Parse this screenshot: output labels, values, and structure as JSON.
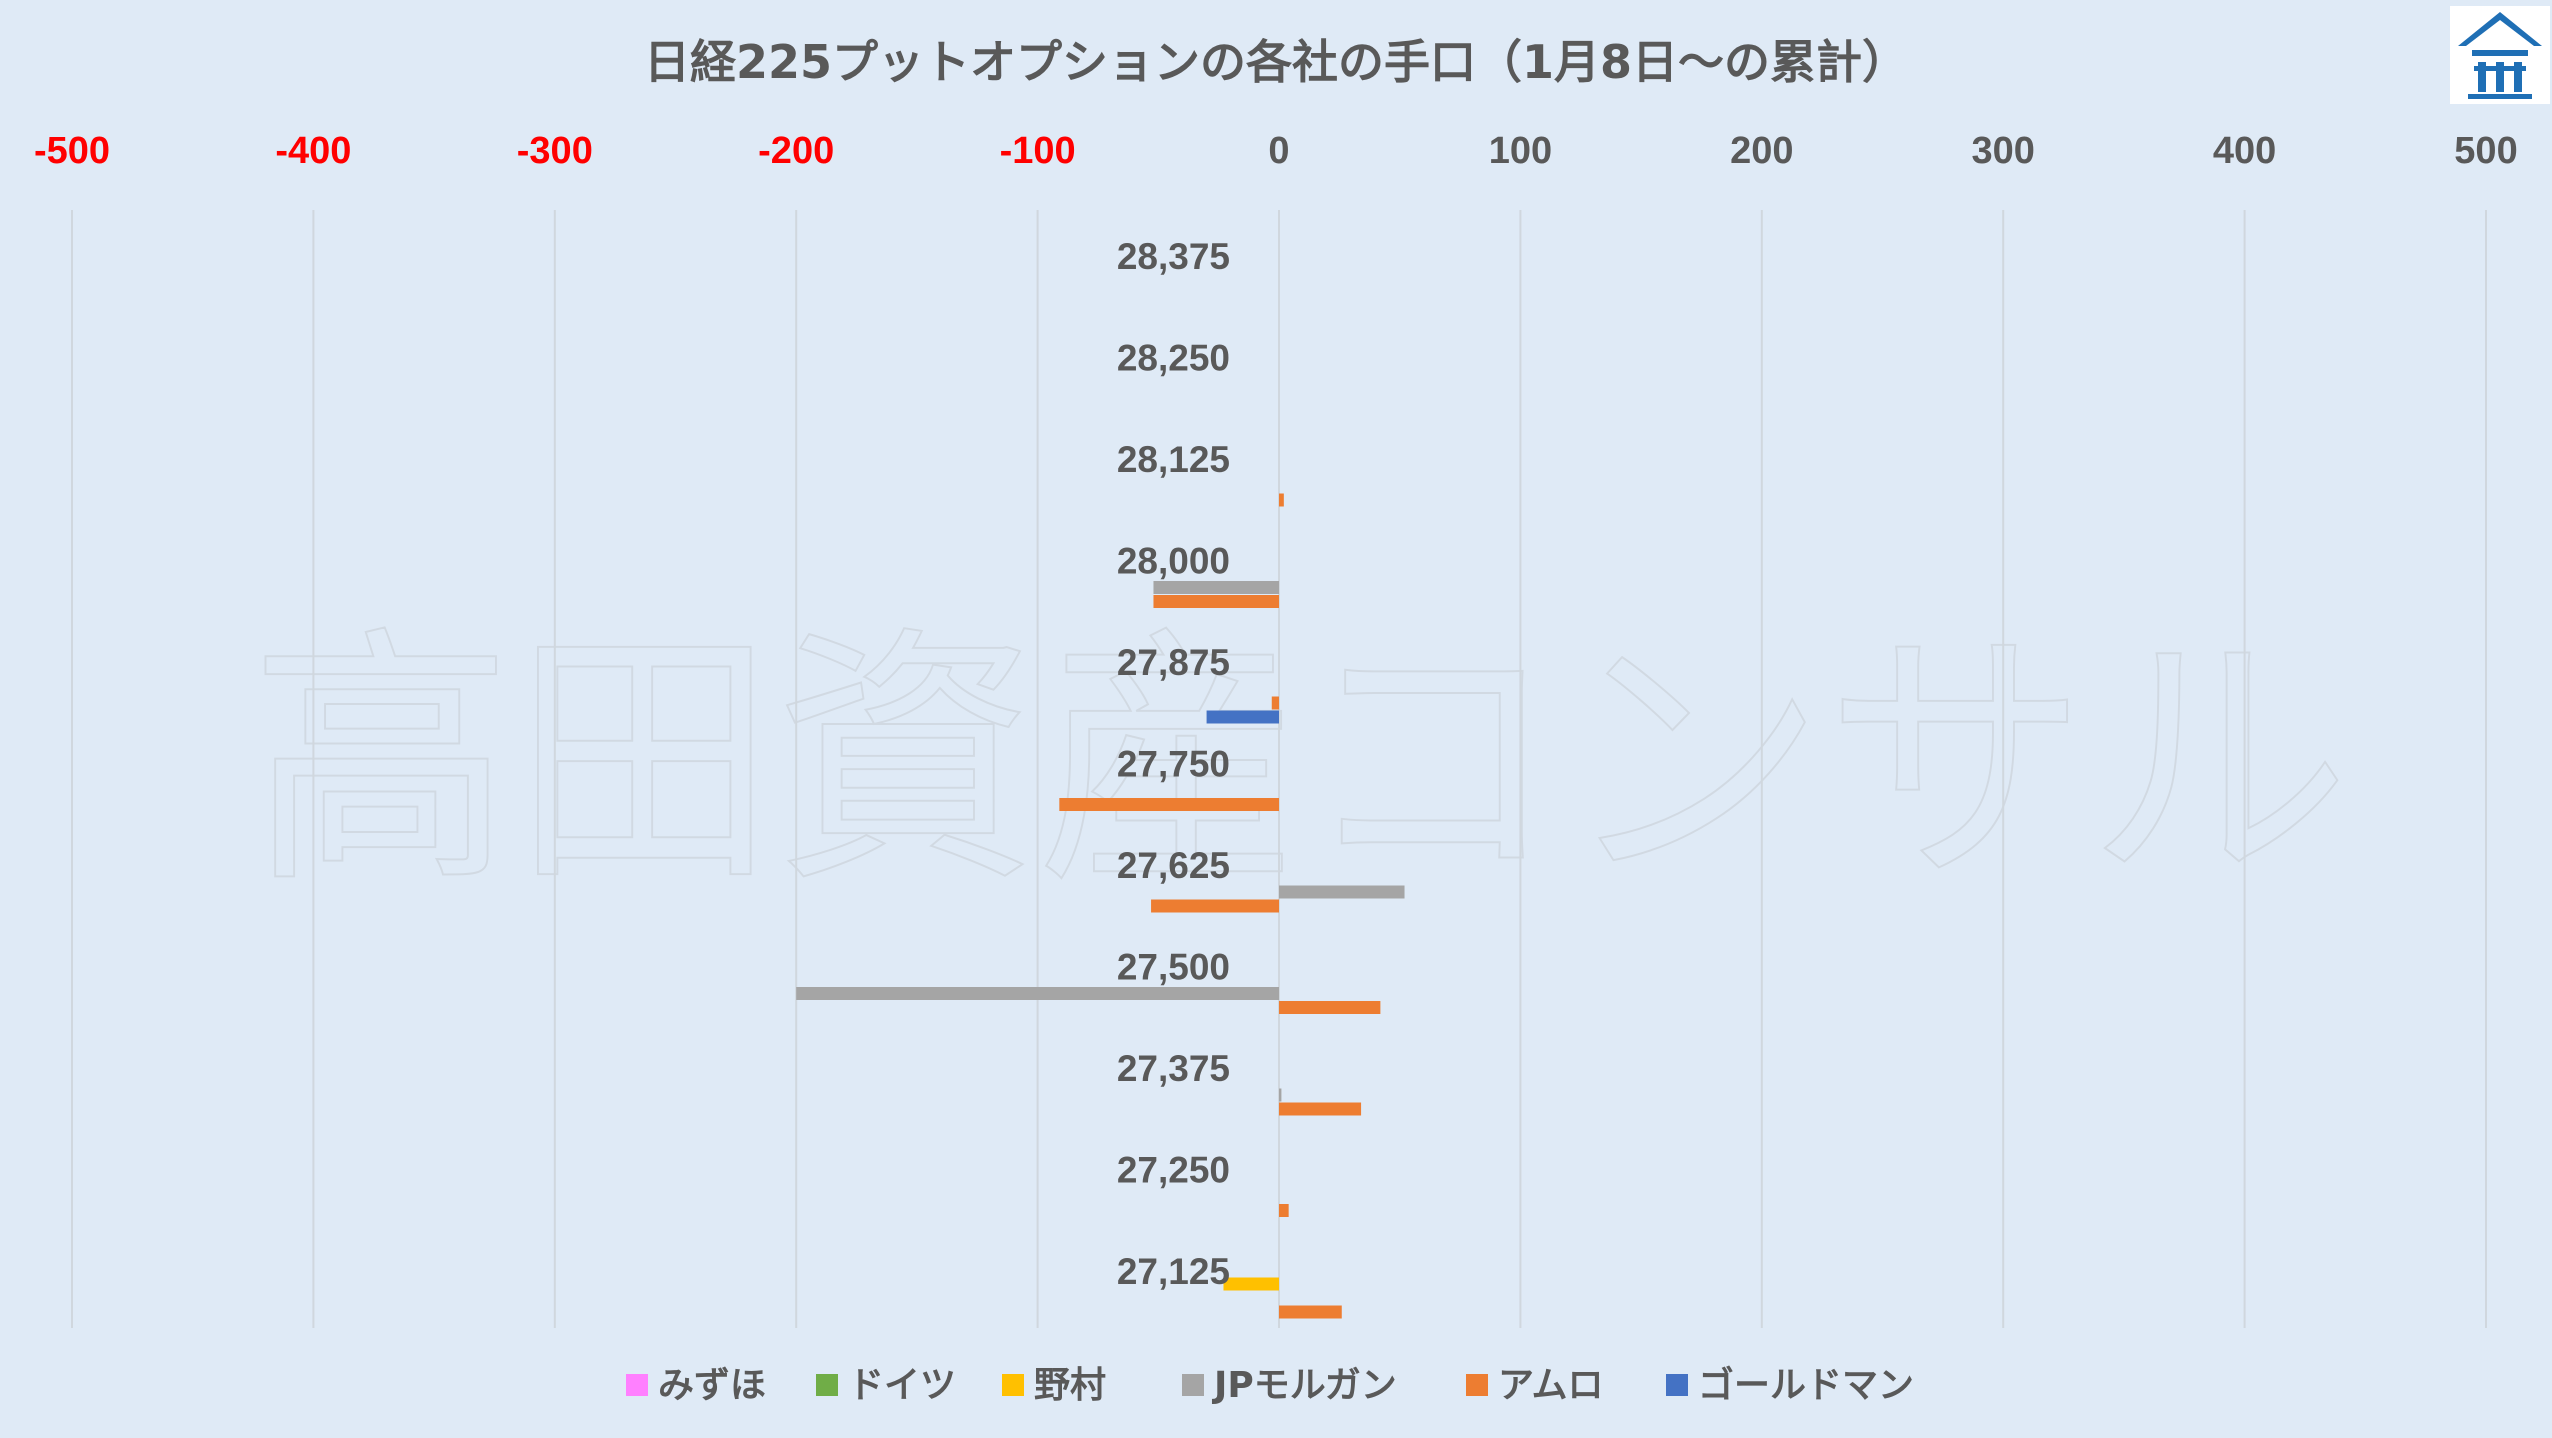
{
  "chart_data": {
    "type": "bar",
    "orientation": "horizontal",
    "title": "日経225プットオプションの各社の手口（1月8日～の累計）",
    "xlim": [
      -500,
      500
    ],
    "xticks": [
      {
        "value": -500,
        "label": "-500"
      },
      {
        "value": -400,
        "label": "-400"
      },
      {
        "value": -300,
        "label": "-300"
      },
      {
        "value": -200,
        "label": "-200"
      },
      {
        "value": -100,
        "label": "-100"
      },
      {
        "value": 0,
        "label": "0"
      },
      {
        "value": 100,
        "label": "100"
      },
      {
        "value": 200,
        "label": "200"
      },
      {
        "value": 300,
        "label": "300"
      },
      {
        "value": 400,
        "label": "400"
      },
      {
        "value": 500,
        "label": "500"
      }
    ],
    "negative_tick_color": "#ff0000",
    "positive_tick_color": "#595959",
    "grid": true,
    "legend_position": "bottom",
    "categories": [
      "28,375",
      "28,250",
      "28,125",
      "28,000",
      "27,875",
      "27,750",
      "27,625",
      "27,500",
      "27,375",
      "27,250",
      "27,125"
    ],
    "series": [
      {
        "name": "みずほ",
        "color": "#ff80ff",
        "values": [
          0,
          0,
          0,
          0,
          0,
          0,
          0,
          0,
          0,
          0,
          0
        ]
      },
      {
        "name": "ドイツ",
        "color": "#70ad47",
        "values": [
          0,
          0,
          0,
          0,
          0,
          0,
          0,
          0,
          0,
          0,
          0
        ]
      },
      {
        "name": "野村",
        "color": "#ffc000",
        "values": [
          0,
          0,
          0,
          0,
          0,
          0,
          0,
          0,
          0,
          0,
          -23
        ]
      },
      {
        "name": "JPモルガン",
        "color": "#a5a5a5",
        "values": [
          0,
          0,
          0,
          -52,
          0,
          0,
          52,
          -200,
          1,
          0,
          0
        ]
      },
      {
        "name": "アムロ",
        "color": "#ed7d31",
        "values": [
          0,
          0,
          2,
          -52,
          -3,
          -91,
          -53,
          42,
          34,
          4,
          26
        ]
      },
      {
        "name": "ゴールドマン",
        "color": "#4472c4",
        "values": [
          0,
          0,
          0,
          0,
          -30,
          0,
          0,
          0,
          0,
          0,
          0
        ]
      }
    ]
  },
  "watermark": {
    "text": "高田資産コンサル",
    "color": "#c9cfd6"
  },
  "logo": {
    "icon": "house-logo-icon",
    "color": "#1f6fb5"
  },
  "colors": {
    "background": "#dfeaf6",
    "gridline": "#d0d7de"
  }
}
